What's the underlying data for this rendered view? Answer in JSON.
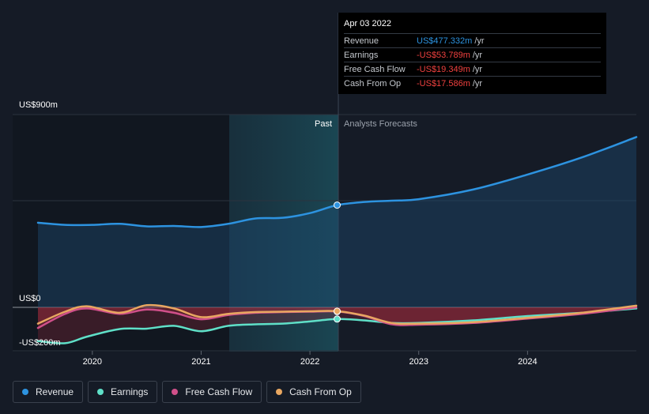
{
  "chart_data": {
    "type": "line",
    "y_unit_labels": {
      "top": "US$900m",
      "zero": "US$0",
      "bottom": "-US$200m"
    },
    "ylim": [
      -200,
      900
    ],
    "x_ticks": [
      "2020",
      "2021",
      "2022",
      "2023",
      "2024"
    ],
    "divider_labels": {
      "past": "Past",
      "forecast": "Analysts Forecasts"
    },
    "highlight_date": "Apr 03 2022",
    "series": [
      {
        "name": "Revenue",
        "color": "#2d93e0",
        "points": [
          [
            2019.5,
            395
          ],
          [
            2019.75,
            385
          ],
          [
            2020.0,
            385
          ],
          [
            2020.25,
            390
          ],
          [
            2020.5,
            378
          ],
          [
            2020.75,
            380
          ],
          [
            2021.0,
            375
          ],
          [
            2021.25,
            390
          ],
          [
            2021.5,
            415
          ],
          [
            2021.75,
            418
          ],
          [
            2022.0,
            440
          ],
          [
            2022.25,
            477.3
          ],
          [
            2022.5,
            492
          ],
          [
            2022.75,
            498
          ],
          [
            2023.0,
            505
          ],
          [
            2023.5,
            550
          ],
          [
            2024.0,
            620
          ],
          [
            2024.5,
            700
          ],
          [
            2025.0,
            795
          ]
        ]
      },
      {
        "name": "Earnings",
        "color": "#5fe0c8",
        "points": [
          [
            2019.5,
            -155
          ],
          [
            2019.75,
            -165
          ],
          [
            2019.95,
            -135
          ],
          [
            2020.25,
            -100
          ],
          [
            2020.5,
            -98
          ],
          [
            2020.75,
            -85
          ],
          [
            2021.0,
            -110
          ],
          [
            2021.25,
            -85
          ],
          [
            2021.5,
            -78
          ],
          [
            2021.75,
            -75
          ],
          [
            2022.0,
            -65
          ],
          [
            2022.25,
            -53.8
          ],
          [
            2022.5,
            -60
          ],
          [
            2022.75,
            -72
          ],
          [
            2023.0,
            -72
          ],
          [
            2023.5,
            -60
          ],
          [
            2024.0,
            -40
          ],
          [
            2024.5,
            -25
          ],
          [
            2025.0,
            -5
          ]
        ]
      },
      {
        "name": "Free Cash Flow",
        "color": "#d0508a",
        "points": [
          [
            2019.5,
            -95
          ],
          [
            2019.75,
            -30
          ],
          [
            2019.95,
            -5
          ],
          [
            2020.25,
            -30
          ],
          [
            2020.5,
            -10
          ],
          [
            2020.75,
            -25
          ],
          [
            2021.0,
            -55
          ],
          [
            2021.25,
            -35
          ],
          [
            2021.5,
            -25
          ],
          [
            2021.75,
            -22
          ],
          [
            2022.0,
            -20
          ],
          [
            2022.25,
            -19.3
          ],
          [
            2022.5,
            -40
          ],
          [
            2022.75,
            -78
          ],
          [
            2023.0,
            -80
          ],
          [
            2023.5,
            -72
          ],
          [
            2024.0,
            -52
          ],
          [
            2024.5,
            -30
          ],
          [
            2025.0,
            0
          ]
        ]
      },
      {
        "name": "Cash From Op",
        "color": "#e8a761",
        "points": [
          [
            2019.5,
            -75
          ],
          [
            2019.75,
            -20
          ],
          [
            2019.95,
            5
          ],
          [
            2020.25,
            -25
          ],
          [
            2020.5,
            10
          ],
          [
            2020.75,
            -5
          ],
          [
            2021.0,
            -45
          ],
          [
            2021.25,
            -30
          ],
          [
            2021.5,
            -22
          ],
          [
            2021.75,
            -20
          ],
          [
            2022.0,
            -18
          ],
          [
            2022.25,
            -17.6
          ],
          [
            2022.5,
            -38
          ],
          [
            2022.75,
            -72
          ],
          [
            2023.0,
            -75
          ],
          [
            2023.5,
            -68
          ],
          [
            2024.0,
            -48
          ],
          [
            2024.5,
            -25
          ],
          [
            2025.0,
            8
          ]
        ]
      }
    ]
  },
  "tooltip": {
    "date": "Apr 03 2022",
    "rows": [
      {
        "label": "Revenue",
        "value": "US$477.332m",
        "unit": "/yr",
        "color": "#2d93e0"
      },
      {
        "label": "Earnings",
        "value": "-US$53.789m",
        "unit": "/yr",
        "color": "#f0413f"
      },
      {
        "label": "Free Cash Flow",
        "value": "-US$19.349m",
        "unit": "/yr",
        "color": "#f0413f"
      },
      {
        "label": "Cash From Op",
        "value": "-US$17.586m",
        "unit": "/yr",
        "color": "#f0413f"
      }
    ]
  },
  "legend": [
    {
      "label": "Revenue",
      "color": "#2d93e0"
    },
    {
      "label": "Earnings",
      "color": "#5fe0c8"
    },
    {
      "label": "Free Cash Flow",
      "color": "#d0508a"
    },
    {
      "label": "Cash From Op",
      "color": "#e8a761"
    }
  ]
}
